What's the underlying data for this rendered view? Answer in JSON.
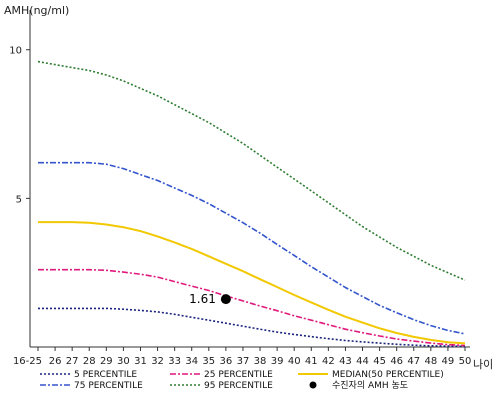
{
  "chart_data": {
    "type": "line",
    "ylabel": "AMH(ng/ml)",
    "xlabel": "나이",
    "ylim": [
      0,
      11
    ],
    "y_ticks": [
      "5",
      "10"
    ],
    "y_tick_values": [
      5,
      10
    ],
    "x": [
      25,
      26,
      27,
      28,
      29,
      30,
      31,
      32,
      33,
      34,
      35,
      36,
      37,
      38,
      39,
      40,
      41,
      42,
      43,
      44,
      45,
      46,
      47,
      48,
      49,
      50
    ],
    "x_tick_labels": [
      "16-25",
      "26",
      "27",
      "28",
      "29",
      "30",
      "31",
      "32",
      "33",
      "34",
      "35",
      "36",
      "37",
      "38",
      "39",
      "40",
      "41",
      "42",
      "43",
      "44",
      "45",
      "46",
      "47",
      "48",
      "49",
      "50"
    ],
    "series": [
      {
        "name": "5 PERCENTILE",
        "color": "#1a237e",
        "dash": "2,2",
        "values": [
          1.3,
          1.3,
          1.3,
          1.3,
          1.3,
          1.27,
          1.23,
          1.18,
          1.1,
          1.0,
          0.9,
          0.8,
          0.7,
          0.6,
          0.5,
          0.42,
          0.35,
          0.28,
          0.22,
          0.17,
          0.13,
          0.09,
          0.06,
          0.04,
          0.03,
          0.02
        ]
      },
      {
        "name": "25 PERCENTILE",
        "color": "#e0197d",
        "dash": "6,2,2,2",
        "values": [
          2.6,
          2.6,
          2.6,
          2.6,
          2.58,
          2.52,
          2.45,
          2.35,
          2.2,
          2.05,
          1.9,
          1.72,
          1.55,
          1.38,
          1.22,
          1.05,
          0.9,
          0.75,
          0.6,
          0.48,
          0.37,
          0.27,
          0.2,
          0.13,
          0.08,
          0.05
        ]
      },
      {
        "name": "MEDIAN(50 PERCENTILE)",
        "color": "#f2c800",
        "dash": "",
        "values": [
          4.2,
          4.2,
          4.2,
          4.18,
          4.12,
          4.03,
          3.9,
          3.72,
          3.52,
          3.3,
          3.05,
          2.8,
          2.55,
          2.28,
          2.02,
          1.75,
          1.5,
          1.25,
          1.02,
          0.82,
          0.63,
          0.47,
          0.34,
          0.24,
          0.16,
          0.12
        ]
      },
      {
        "name": "75 PERCENTILE",
        "color": "#3355cc",
        "dash": "6,2,2,2",
        "values": [
          6.2,
          6.2,
          6.2,
          6.2,
          6.15,
          6.0,
          5.8,
          5.6,
          5.35,
          5.1,
          4.82,
          4.5,
          4.18,
          3.83,
          3.45,
          3.08,
          2.7,
          2.35,
          2.0,
          1.7,
          1.4,
          1.15,
          0.92,
          0.72,
          0.56,
          0.44
        ]
      },
      {
        "name": "95 PERCENTILE",
        "color": "#2e7d32",
        "dash": "2,2",
        "values": [
          9.6,
          9.5,
          9.4,
          9.3,
          9.15,
          8.95,
          8.7,
          8.45,
          8.15,
          7.85,
          7.55,
          7.2,
          6.85,
          6.45,
          6.05,
          5.65,
          5.25,
          4.85,
          4.45,
          4.05,
          3.7,
          3.35,
          3.05,
          2.75,
          2.5,
          2.25
        ]
      }
    ],
    "marker": {
      "name": "수진자의 AMH 농도",
      "x": 36,
      "y": 1.61,
      "label": "1.61"
    },
    "legend_placement": "bottom",
    "grid": false
  }
}
